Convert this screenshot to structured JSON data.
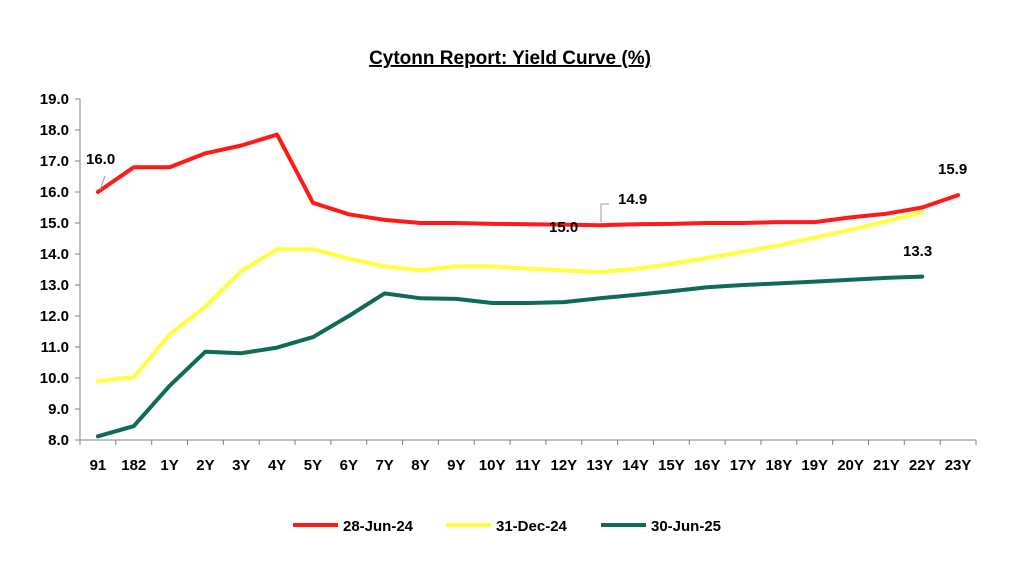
{
  "chart_data": {
    "type": "line",
    "title": "Cytonn Report: Yield Curve (%)",
    "xlabel": "",
    "ylabel": "",
    "ylim": [
      8.0,
      19.0
    ],
    "yticks": [
      "8.0",
      "9.0",
      "10.0",
      "11.0",
      "12.0",
      "13.0",
      "14.0",
      "15.0",
      "16.0",
      "17.0",
      "18.0",
      "19.0"
    ],
    "categories": [
      "91",
      "182",
      "1Y",
      "2Y",
      "3Y",
      "4Y",
      "5Y",
      "6Y",
      "7Y",
      "8Y",
      "9Y",
      "10Y",
      "11Y",
      "12Y",
      "13Y",
      "14Y",
      "15Y",
      "16Y",
      "17Y",
      "18Y",
      "19Y",
      "20Y",
      "21Y",
      "22Y",
      "23Y"
    ],
    "grid": false,
    "legend_position": "bottom",
    "series": [
      {
        "name": "28-Jun-24",
        "color": "#ff1a1a",
        "values": [
          16.0,
          16.8,
          16.8,
          17.25,
          17.5,
          17.85,
          15.65,
          15.28,
          15.1,
          15.0,
          15.0,
          14.97,
          14.96,
          14.95,
          14.93,
          14.96,
          14.97,
          15.0,
          15.0,
          15.03,
          15.03,
          15.18,
          15.3,
          15.5,
          15.9
        ]
      },
      {
        "name": "31-Dec-24",
        "color": "#ffff40",
        "values": [
          9.9,
          10.03,
          11.4,
          12.3,
          13.45,
          14.15,
          14.15,
          13.85,
          13.6,
          13.48,
          13.6,
          13.6,
          13.53,
          13.47,
          13.42,
          13.52,
          13.68,
          13.87,
          14.07,
          14.28,
          14.53,
          14.78,
          15.05,
          15.35,
          null
        ]
      },
      {
        "name": "30-Jun-25",
        "color": "#0d6b57",
        "values": [
          8.12,
          8.45,
          9.75,
          10.85,
          10.8,
          10.98,
          11.32,
          12.0,
          12.73,
          12.57,
          12.55,
          12.42,
          12.42,
          12.45,
          12.57,
          12.68,
          12.8,
          12.93,
          13.0,
          13.05,
          13.11,
          13.17,
          13.23,
          13.27,
          null
        ]
      }
    ],
    "annotations": [
      {
        "text": "16.0",
        "series": "28-Jun-24",
        "category": "91"
      },
      {
        "text": "15.0",
        "series": "28-Jun-24",
        "category": "12Y"
      },
      {
        "text": "14.9",
        "series": "28-Jun-24",
        "category": "13Y"
      },
      {
        "text": "15.9",
        "series": "28-Jun-24",
        "category": "23Y"
      },
      {
        "text": "13.3",
        "series": "30-Jun-25",
        "category": "22Y"
      }
    ]
  }
}
